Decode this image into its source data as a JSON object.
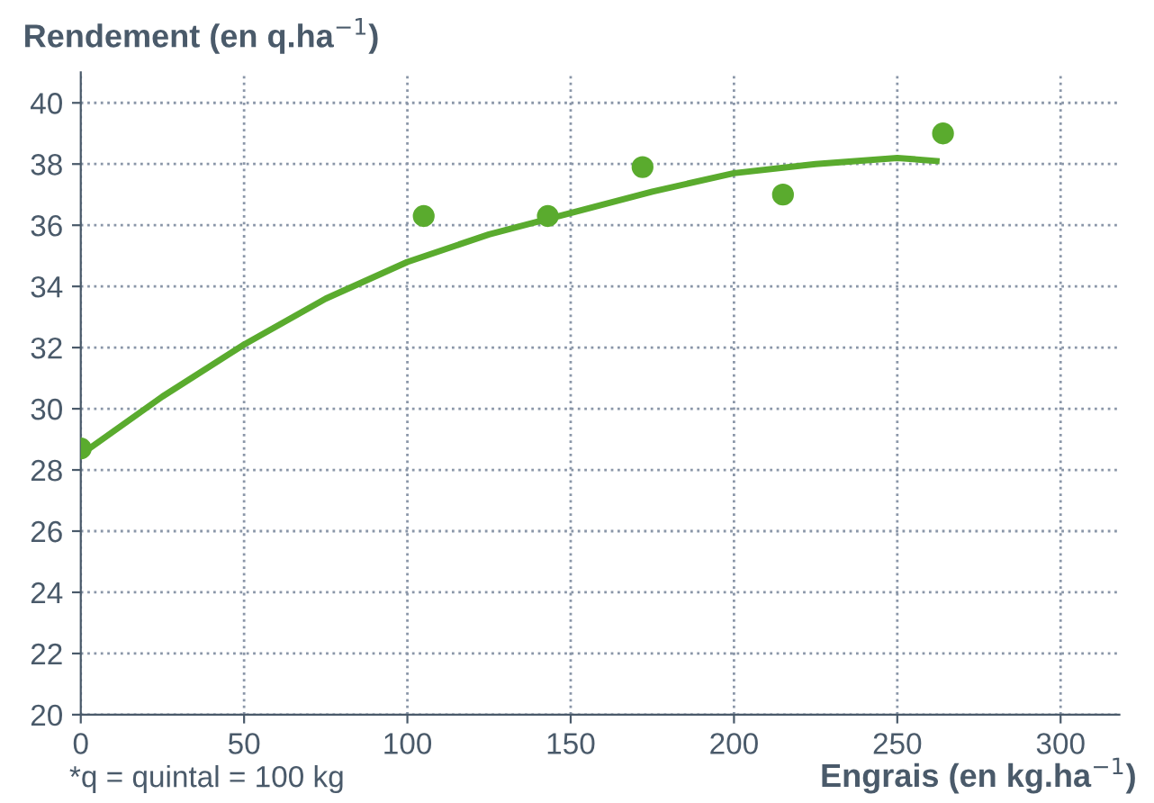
{
  "chart_data": {
    "type": "scatter",
    "xlabel": "Engrais (en kg.ha$^{−1}$)",
    "ylabel": "Rendement (en q.ha$^{−1}$)",
    "annotations": [
      "*q = quintal = 100 kg"
    ],
    "xlim": [
      0,
      318
    ],
    "ylim": [
      20,
      41
    ],
    "xticks": [
      0,
      50,
      100,
      150,
      200,
      250,
      300
    ],
    "yticks": [
      20,
      22,
      24,
      26,
      28,
      30,
      32,
      34,
      36,
      38,
      40
    ],
    "grid": true,
    "series": [
      {
        "color": "#5aab2e",
        "marker": "circle",
        "x": [
          0,
          105,
          143,
          172,
          215,
          264
        ],
        "values": [
          28.7,
          36.3,
          36.3,
          37.9,
          37.0,
          39.0
        ]
      },
      {
        "type": "line",
        "color": "#5aab2e",
        "x": [
          0,
          25,
          50,
          75,
          100,
          125,
          150,
          175,
          200,
          225,
          250,
          262
        ],
        "values": [
          28.5,
          30.4,
          32.1,
          33.6,
          34.8,
          35.7,
          36.4,
          37.1,
          37.7,
          38.0,
          38.2,
          38.1
        ]
      }
    ]
  }
}
